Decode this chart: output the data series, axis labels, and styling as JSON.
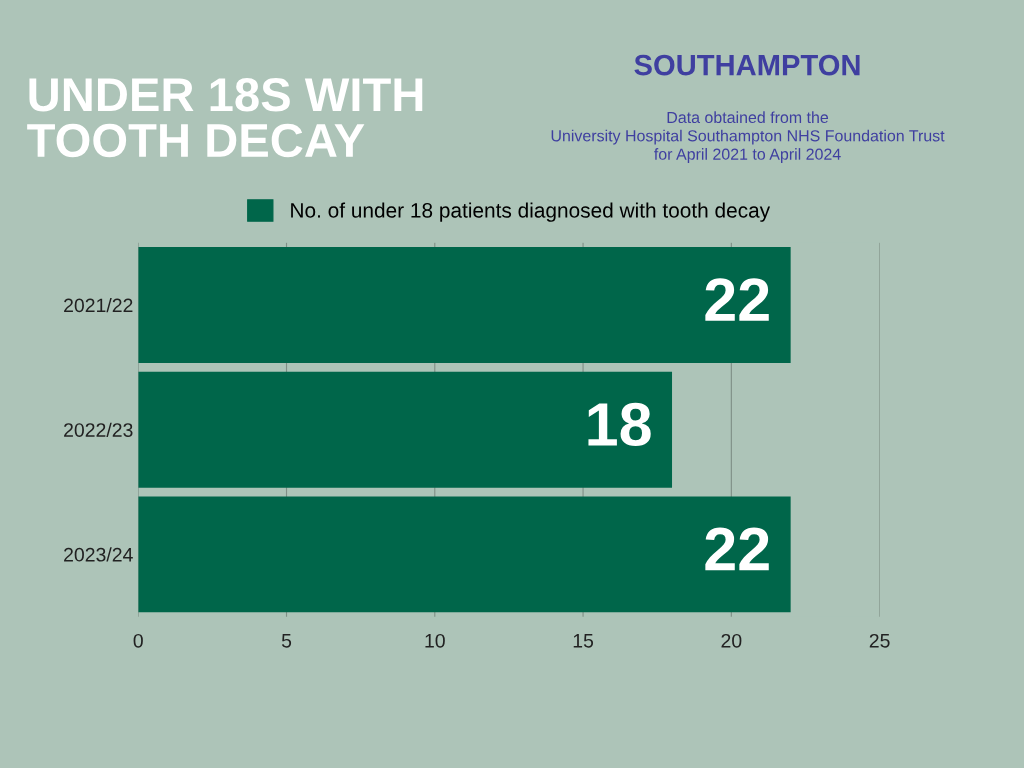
{
  "chart_data": {
    "type": "bar",
    "orientation": "horizontal",
    "title": "UNDER 18S WITH\nTOOTH DECAY",
    "subtitle": "SOUTHAMPTON",
    "annotations": [
      "Data obtained from the\nUniversity Hospital Southampton NHS Foundation Trust\nfor April 2021 to April 2024"
    ],
    "categories": [
      "2021/22",
      "2022/23",
      "2023/24"
    ],
    "series": [
      {
        "name": "No. of under 18 patients diagnosed with tooth decay",
        "color": "#00664a",
        "values": [
          22,
          18,
          22
        ]
      }
    ],
    "xlim": [
      0,
      25
    ],
    "xticks": [
      0,
      5,
      10,
      15,
      20,
      25
    ],
    "grid": "x",
    "legend": "top",
    "data_labels": true
  }
}
